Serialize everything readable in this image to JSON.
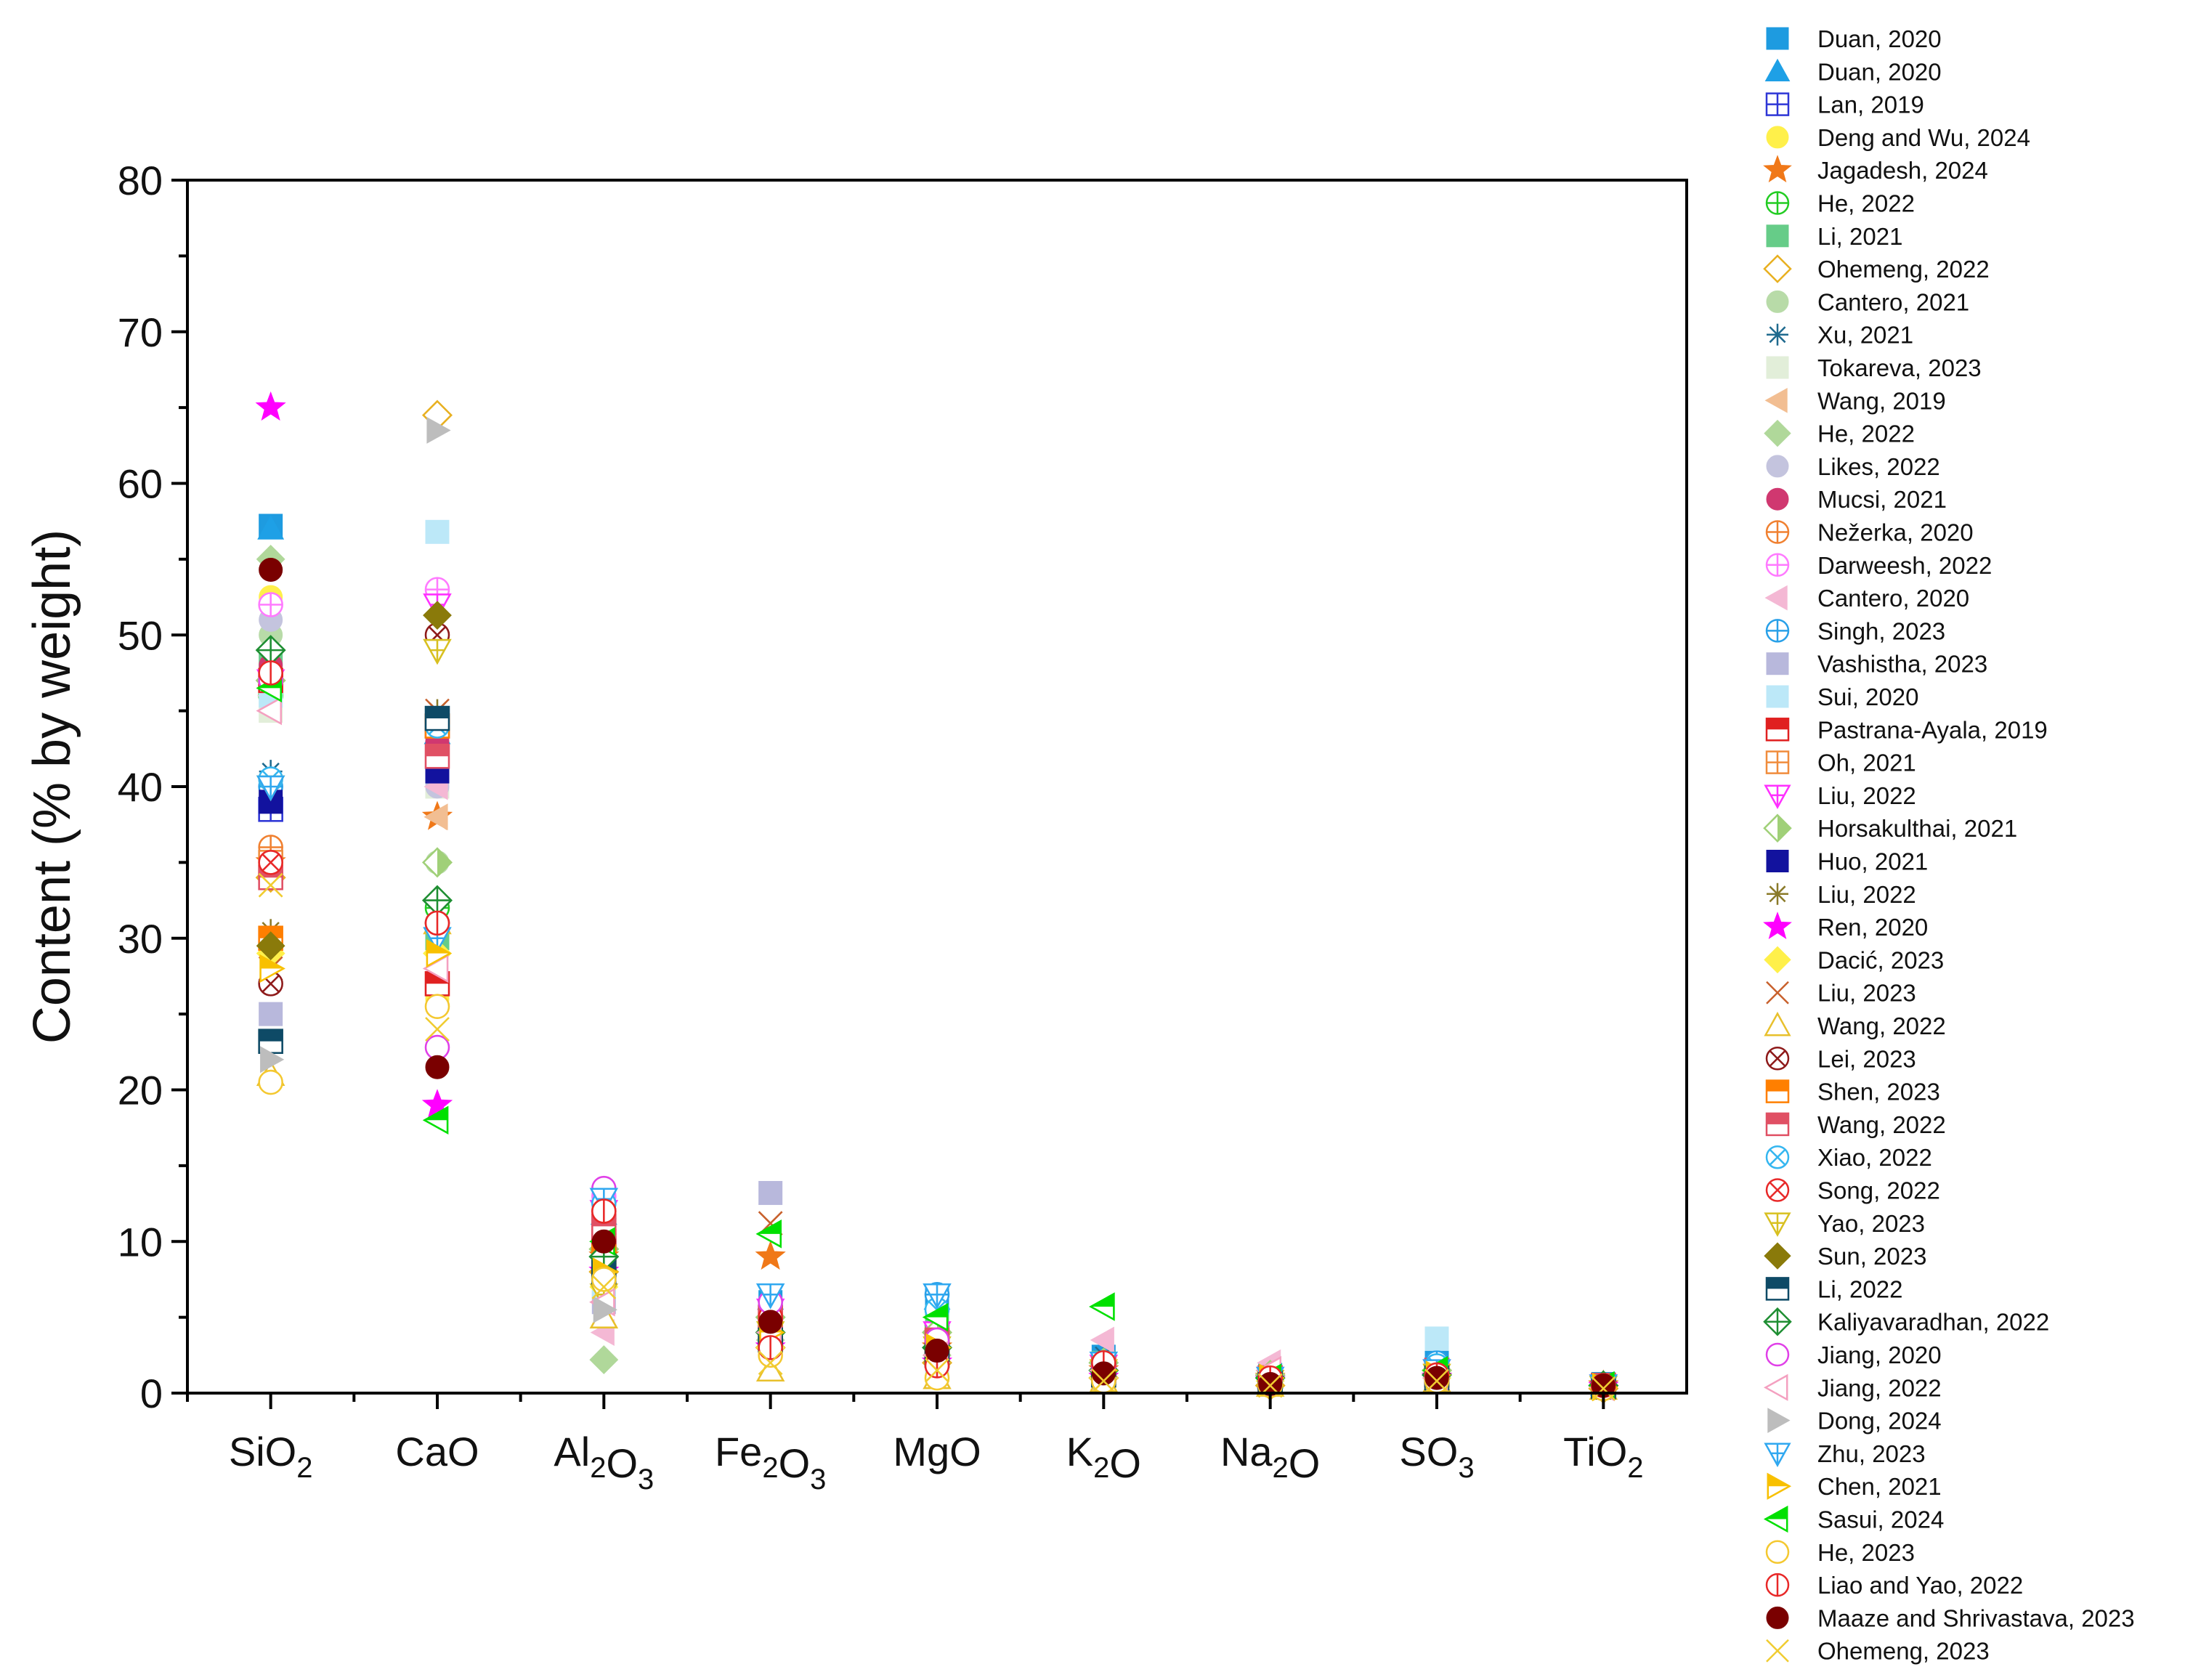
{
  "chart_data": {
    "type": "scatter",
    "ylabel": "Content (% by weight)",
    "ylim": [
      0,
      80
    ],
    "yticks": [
      0,
      10,
      20,
      30,
      40,
      50,
      60,
      70,
      80
    ],
    "ytick_labels": [
      "0",
      "10",
      "20",
      "30",
      "40",
      "50",
      "60",
      "70",
      "80"
    ],
    "categories": [
      {
        "base": "SiO",
        "sub": "2",
        "tail": ""
      },
      {
        "base": "CaO",
        "sub": "",
        "tail": ""
      },
      {
        "base": "Al",
        "sub": "2",
        "tail": "O",
        "sub2": "3"
      },
      {
        "base": "Fe",
        "sub": "2",
        "tail": "O",
        "sub2": "3"
      },
      {
        "base": "MgO",
        "sub": "",
        "tail": ""
      },
      {
        "base": "K",
        "sub": "2",
        "tail": "O"
      },
      {
        "base": "Na",
        "sub": "2",
        "tail": "O"
      },
      {
        "base": "SO",
        "sub": "3",
        "tail": ""
      },
      {
        "base": "TiO",
        "sub": "2",
        "tail": ""
      }
    ],
    "category_names": [
      "SiO2",
      "CaO",
      "Al2O3",
      "Fe2O3",
      "MgO",
      "K2O",
      "Na2O",
      "SO3",
      "TiO2"
    ],
    "legend_position": "right, outside plot",
    "series": [
      {
        "name": "Duan, 2020",
        "marker": "square-filled",
        "color": "#1E9BE0",
        "values": [
          57.2,
          44.0,
          12.0,
          6.0,
          6.4,
          2.4,
          1.2,
          2.0,
          0.6
        ]
      },
      {
        "name": "Duan, 2020",
        "marker": "triangle-up-filled",
        "color": "#1EA0E6",
        "values": [
          57.0,
          43.5,
          11.8,
          6.2,
          6.2,
          2.2,
          1.0,
          1.8,
          0.5
        ]
      },
      {
        "name": "Lan, 2019",
        "marker": "square-grid",
        "color": "#2E36D6",
        "values": [
          38.5,
          44.0,
          9.5,
          4.0,
          3.0,
          1.5,
          0.8,
          1.5,
          0.4
        ]
      },
      {
        "name": "Deng and Wu, 2024",
        "marker": "circle-filled",
        "color": "#FFF04A",
        "values": [
          52.5,
          26.0,
          7.5,
          3.0,
          2.0,
          1.0,
          0.8,
          1.2,
          0.4
        ]
      },
      {
        "name": "Jagadesh, 2024",
        "marker": "star-filled",
        "color": "#F07818",
        "values": [
          35.0,
          38.0,
          9.0,
          9.0,
          3.0,
          1.5,
          1.0,
          1.0,
          0.5
        ]
      },
      {
        "name": "He, 2022",
        "marker": "circle-plus",
        "color": "#22CC22",
        "values": [
          46.0,
          32.0,
          10.0,
          4.0,
          4.5,
          1.5,
          1.2,
          1.5,
          0.5
        ]
      },
      {
        "name": "Li, 2021",
        "marker": "square-filled",
        "color": "#66CC88",
        "values": [
          48.0,
          30.0,
          11.0,
          5.0,
          5.0,
          2.0,
          1.0,
          1.5,
          0.5
        ]
      },
      {
        "name": "Ohemeng, 2022",
        "marker": "diamond-open",
        "color": "#E8B020",
        "values": [
          34.0,
          64.5,
          8.0,
          3.0,
          2.0,
          1.0,
          0.5,
          1.5,
          0.3
        ]
      },
      {
        "name": "Cantero, 2021",
        "marker": "circle-filled",
        "color": "#B8DBA8",
        "values": [
          50.0,
          35.0,
          9.0,
          4.5,
          3.0,
          1.5,
          1.0,
          1.2,
          0.5
        ]
      },
      {
        "name": "Xu, 2021",
        "marker": "asterisk",
        "color": "#1F6A8E",
        "values": [
          41.0,
          42.0,
          12.5,
          5.5,
          5.5,
          2.5,
          1.0,
          2.0,
          0.6
        ]
      },
      {
        "name": "Tokareva, 2023",
        "marker": "square-filled",
        "color": "#E2EED9",
        "values": [
          45.0,
          40.0,
          8.5,
          4.0,
          3.0,
          1.2,
          0.8,
          1.2,
          0.4
        ]
      },
      {
        "name": "Wang, 2019",
        "marker": "triangle-left-filled",
        "color": "#F2BE92",
        "values": [
          47.0,
          38.0,
          10.0,
          5.0,
          4.0,
          2.0,
          1.0,
          1.5,
          0.5
        ]
      },
      {
        "name": "He, 2022",
        "marker": "diamond-filled",
        "color": "#B0D89A",
        "values": [
          55.0,
          35.0,
          2.2,
          3.5,
          2.5,
          1.0,
          0.8,
          1.0,
          0.4
        ]
      },
      {
        "name": "Likes, 2022",
        "marker": "circle-filled",
        "color": "#C4C4DE",
        "values": [
          51.0,
          40.0,
          8.0,
          4.0,
          3.0,
          1.5,
          1.0,
          1.5,
          0.5
        ]
      },
      {
        "name": "Mucsi, 2021",
        "marker": "circle-filled",
        "color": "#D03870",
        "values": [
          48.0,
          43.0,
          10.5,
          5.0,
          3.5,
          1.8,
          1.0,
          1.5,
          0.5
        ]
      },
      {
        "name": "Nežerka, 2020",
        "marker": "circle-plus",
        "color": "#F08030",
        "values": [
          36.0,
          31.0,
          11.0,
          4.0,
          3.0,
          1.5,
          1.2,
          1.2,
          0.5
        ]
      },
      {
        "name": "Darweesh, 2022",
        "marker": "circle-plus",
        "color": "#FF7AFF",
        "values": [
          52.0,
          53.0,
          13.0,
          6.0,
          3.5,
          2.0,
          1.0,
          1.5,
          0.5
        ]
      },
      {
        "name": "Cantero, 2020",
        "marker": "triangle-left-filled",
        "color": "#F4B8D4",
        "values": [
          46.0,
          40.0,
          4.0,
          5.5,
          3.0,
          3.5,
          2.0,
          1.0,
          0.4
        ]
      },
      {
        "name": "Singh, 2023",
        "marker": "circle-plus",
        "color": "#28A0E8",
        "values": [
          40.0,
          31.0,
          11.5,
          5.0,
          6.5,
          2.0,
          1.0,
          2.0,
          0.5
        ]
      },
      {
        "name": "Vashistha, 2023",
        "marker": "square-filled",
        "color": "#B8B8DC",
        "values": [
          25.0,
          42.0,
          6.0,
          13.2,
          2.5,
          1.5,
          1.0,
          1.0,
          0.4
        ]
      },
      {
        "name": "Sui, 2020",
        "marker": "square-filled",
        "color": "#BCE8F8",
        "values": [
          46.0,
          56.8,
          7.0,
          3.0,
          2.0,
          1.0,
          0.8,
          3.6,
          0.4
        ]
      },
      {
        "name": "Pastrana-Ayala, 2019",
        "marker": "square-half",
        "color": "#E02020",
        "values": [
          47.0,
          27.0,
          10.0,
          5.0,
          3.0,
          1.5,
          1.0,
          1.2,
          0.5
        ]
      },
      {
        "name": "Oh, 2021",
        "marker": "square-grid",
        "color": "#F08C3C",
        "values": [
          35.0,
          44.0,
          8.5,
          4.5,
          2.5,
          1.2,
          0.8,
          1.2,
          0.4
        ]
      },
      {
        "name": "Liu, 2022",
        "marker": "triangle-down-cross",
        "color": "#FF30FF",
        "values": [
          47.0,
          52.0,
          12.0,
          5.5,
          4.0,
          1.8,
          1.0,
          1.5,
          0.5
        ]
      },
      {
        "name": "Horsakulthai, 2021",
        "marker": "diamond-half",
        "color": "#A0D078",
        "values": [
          47.0,
          35.0,
          9.5,
          5.0,
          4.0,
          2.0,
          1.2,
          1.5,
          0.5
        ]
      },
      {
        "name": "Huo, 2021",
        "marker": "square-filled",
        "color": "#12129E",
        "values": [
          39.0,
          41.0,
          9.0,
          4.0,
          3.0,
          1.5,
          0.8,
          1.2,
          0.4
        ]
      },
      {
        "name": "Liu, 2022",
        "marker": "asterisk",
        "color": "#8A7A28",
        "values": [
          30.5,
          45.0,
          8.0,
          3.5,
          3.0,
          1.5,
          1.0,
          1.0,
          0.4
        ]
      },
      {
        "name": "Ren, 2020",
        "marker": "star-filled",
        "color": "#FF00FF",
        "values": [
          65.0,
          19.0,
          8.0,
          3.0,
          2.0,
          1.0,
          0.8,
          1.0,
          0.4
        ]
      },
      {
        "name": "Dacić, 2023",
        "marker": "diamond-filled",
        "color": "#FFF04A",
        "values": [
          29.0,
          29.0,
          7.0,
          3.0,
          3.0,
          1.0,
          0.8,
          1.0,
          0.4
        ]
      },
      {
        "name": "Liu, 2023",
        "marker": "x-cross",
        "color": "#C8602C",
        "values": [
          28.0,
          45.0,
          8.0,
          11.2,
          2.5,
          1.2,
          0.8,
          1.2,
          0.4
        ]
      },
      {
        "name": "Wang, 2022",
        "marker": "triangle-up-open",
        "color": "#E8C02C",
        "values": [
          21.0,
          31.0,
          5.0,
          1.5,
          1.0,
          0.8,
          0.5,
          0.8,
          0.3
        ]
      },
      {
        "name": "Lei, 2023",
        "marker": "circle-x",
        "color": "#8E1A1A",
        "values": [
          27.0,
          50.0,
          10.5,
          4.0,
          3.0,
          1.5,
          1.0,
          1.2,
          0.4
        ]
      },
      {
        "name": "Shen, 2023",
        "marker": "square-half",
        "color": "#FF7F00",
        "values": [
          30.0,
          44.0,
          9.0,
          4.0,
          3.0,
          1.5,
          1.0,
          1.2,
          0.5
        ]
      },
      {
        "name": "Wang, 2022",
        "marker": "square-half",
        "color": "#E05064",
        "values": [
          34.0,
          42.0,
          11.0,
          5.0,
          3.5,
          1.8,
          1.0,
          1.5,
          0.5
        ]
      },
      {
        "name": "Xiao, 2022",
        "marker": "circle-x",
        "color": "#34B6F0",
        "values": [
          40.5,
          44.0,
          12.5,
          6.0,
          5.5,
          2.0,
          1.0,
          1.8,
          0.5
        ]
      },
      {
        "name": "Song, 2022",
        "marker": "circle-x",
        "color": "#E82828",
        "values": [
          35.0,
          31.0,
          12.0,
          5.0,
          3.0,
          1.5,
          1.0,
          1.2,
          0.5
        ]
      },
      {
        "name": "Yao, 2023",
        "marker": "triangle-down-cross",
        "color": "#D8C020",
        "values": [
          40.0,
          49.0,
          6.5,
          4.0,
          3.0,
          1.5,
          0.8,
          1.2,
          0.4
        ]
      },
      {
        "name": "Sun, 2023",
        "marker": "diamond-filled",
        "color": "#8A7A0A",
        "values": [
          29.5,
          51.3,
          9.0,
          4.0,
          3.0,
          1.5,
          1.0,
          1.2,
          0.5
        ]
      },
      {
        "name": "Li, 2022",
        "marker": "square-half",
        "color": "#0E4A66",
        "values": [
          23.2,
          44.5,
          8.0,
          3.5,
          2.5,
          1.2,
          0.8,
          1.0,
          0.4
        ]
      },
      {
        "name": "Kaliyavaradhan, 2022",
        "marker": "diamond-plus",
        "color": "#1E8E32",
        "values": [
          49.0,
          32.5,
          9.0,
          4.0,
          3.0,
          1.5,
          1.0,
          1.2,
          0.5
        ]
      },
      {
        "name": "Jiang, 2020",
        "marker": "circle-open",
        "color": "#E040E8",
        "values": [
          47.0,
          22.8,
          13.5,
          6.0,
          3.5,
          1.8,
          1.0,
          1.2,
          0.5
        ]
      },
      {
        "name": "Jiang, 2022",
        "marker": "triangle-left-open",
        "color": "#F4A0C0",
        "values": [
          45.0,
          28.0,
          6.0,
          4.0,
          2.5,
          1.5,
          1.5,
          1.0,
          0.4
        ]
      },
      {
        "name": "Dong, 2024",
        "marker": "triangle-right-filled",
        "color": "#BDBDBD",
        "values": [
          22.0,
          63.5,
          5.5,
          3.0,
          2.0,
          1.0,
          0.8,
          1.0,
          0.4
        ]
      },
      {
        "name": "Zhu, 2023",
        "marker": "triangle-down-cross",
        "color": "#30A8F0",
        "values": [
          40.0,
          30.0,
          12.8,
          6.5,
          6.5,
          2.0,
          1.0,
          1.5,
          0.5
        ]
      },
      {
        "name": "Chen, 2021",
        "marker": "triangle-right-half",
        "color": "#F8C000",
        "values": [
          28.0,
          29.0,
          8.0,
          4.0,
          3.0,
          1.5,
          1.0,
          1.2,
          0.4
        ]
      },
      {
        "name": "Sasui, 2024",
        "marker": "triangle-left-half",
        "color": "#00E000",
        "values": [
          46.5,
          18.0,
          10.0,
          10.5,
          5.0,
          5.7,
          1.0,
          1.5,
          0.5
        ]
      },
      {
        "name": "He, 2023",
        "marker": "circle-open",
        "color": "#F4C830",
        "values": [
          20.5,
          25.5,
          7.5,
          2.5,
          1.0,
          0.8,
          0.5,
          0.8,
          0.3
        ]
      },
      {
        "name": "Liao and Yao, 2022",
        "marker": "circle-vline",
        "color": "#E82828",
        "values": [
          47.5,
          31.0,
          12.0,
          3.0,
          1.8,
          2.0,
          1.0,
          1.2,
          0.5
        ]
      },
      {
        "name": "Maaze and Shrivastava, 2023",
        "marker": "circle-filled",
        "color": "#7A0000",
        "values": [
          54.3,
          21.5,
          10.0,
          4.7,
          2.8,
          1.3,
          0.6,
          1.0,
          0.5
        ]
      },
      {
        "name": "Ohemeng, 2023",
        "marker": "x-cross",
        "color": "#F0CC30",
        "values": [
          33.5,
          24.0,
          7.0,
          2.0,
          1.5,
          0.8,
          0.5,
          0.8,
          0.3
        ]
      }
    ]
  }
}
